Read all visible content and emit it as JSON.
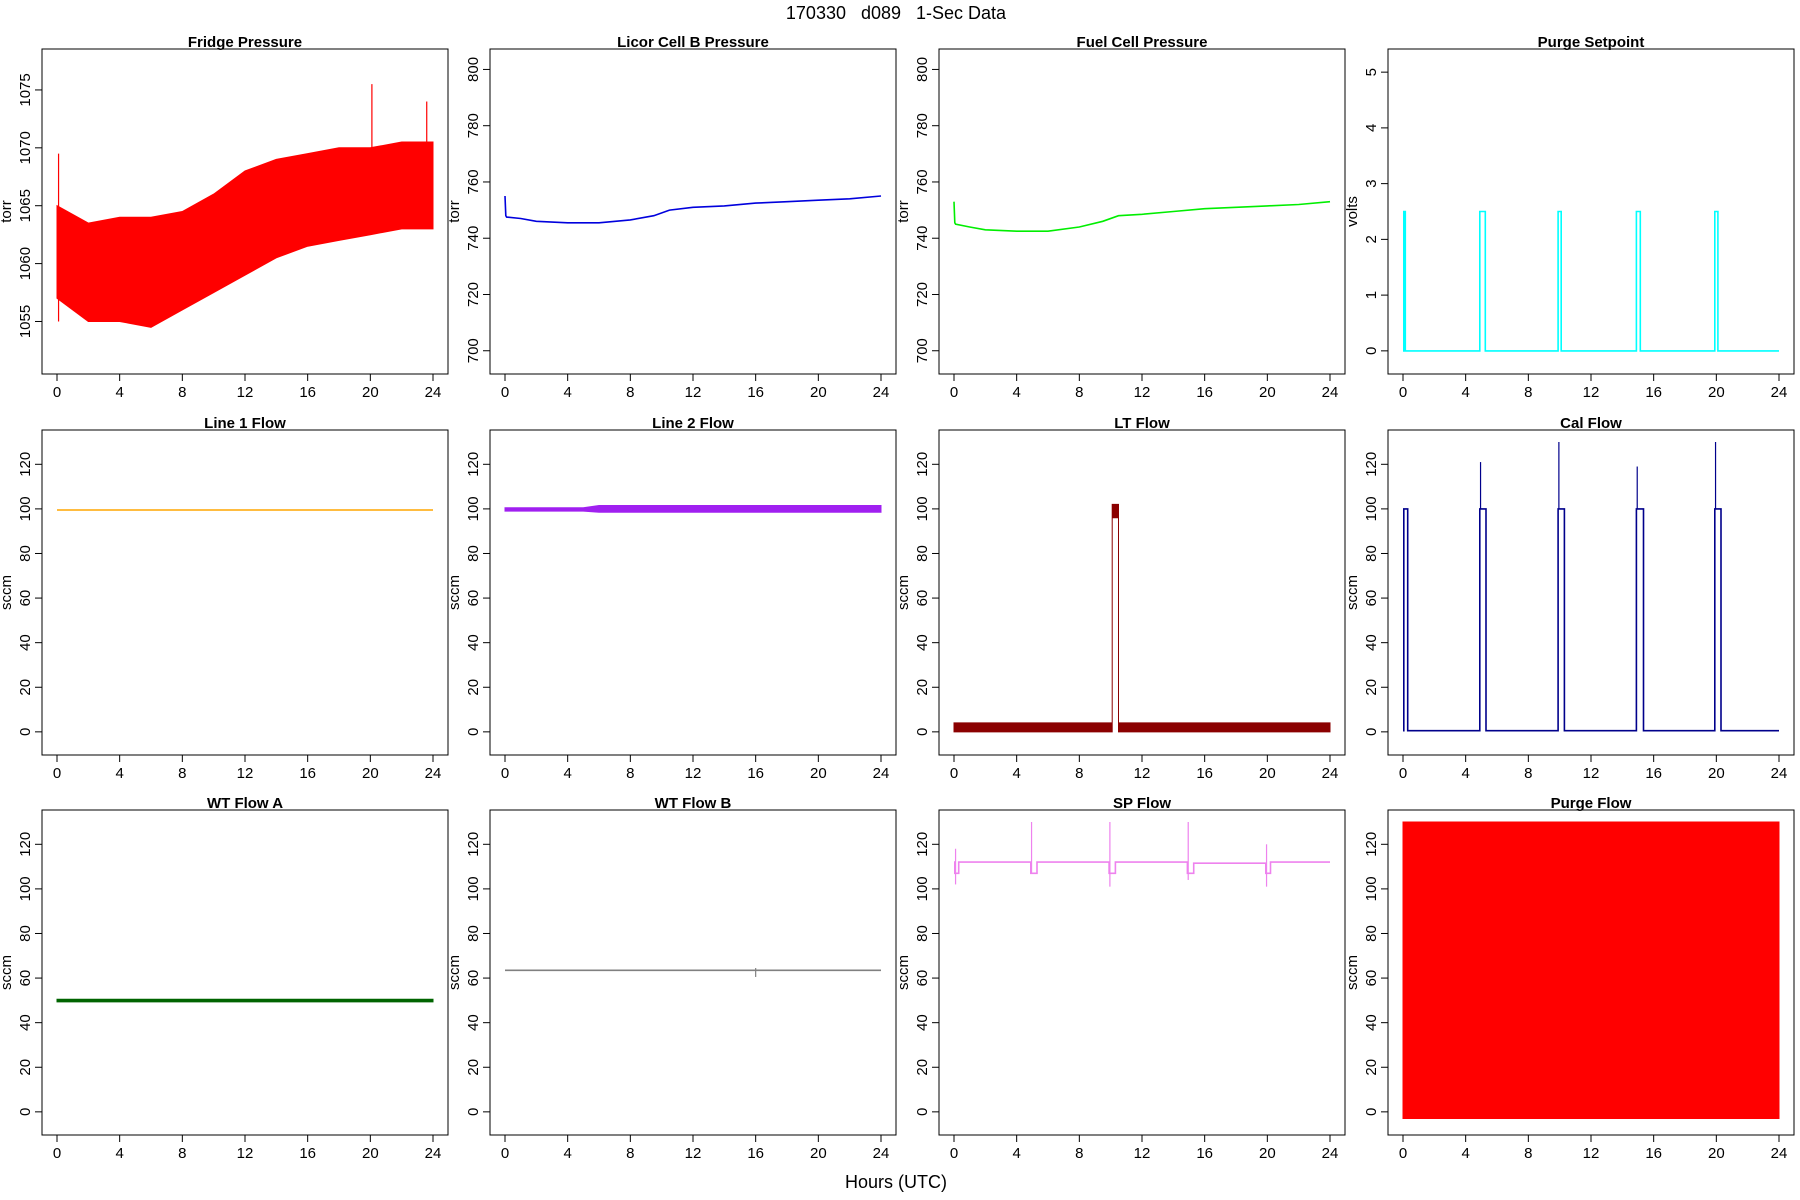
{
  "figure": {
    "title": "170330   d089   1-Sec Data",
    "xlabel": "Hours (UTC)"
  },
  "chart_data": [
    {
      "type": "line",
      "title": "Fridge Pressure",
      "ylabel": "torr",
      "color": "#ff0000",
      "xlim": [
        0,
        24
      ],
      "ylim": [
        1051.5,
        1077.5
      ],
      "xticks": [
        0,
        4,
        8,
        12,
        16,
        20,
        24
      ],
      "yticks": [
        1055,
        1060,
        1065,
        1070,
        1075
      ],
      "style": "band",
      "x": [
        0,
        2,
        4,
        6,
        8,
        10,
        12,
        14,
        16,
        18,
        20,
        22,
        24
      ],
      "y_low": [
        1057,
        1055,
        1055,
        1054.5,
        1056,
        1057.5,
        1059,
        1060.5,
        1061.5,
        1062,
        1062.5,
        1063,
        1063
      ],
      "y_high": [
        1065,
        1063.5,
        1064,
        1064,
        1064.5,
        1066,
        1068,
        1069,
        1069.5,
        1070,
        1070,
        1070.5,
        1070.5
      ],
      "spikes": [
        {
          "x": 0.1,
          "y0": 1055,
          "y1": 1069.5
        },
        {
          "x": 20.1,
          "y0": 1063,
          "y1": 1075.5
        },
        {
          "x": 23.6,
          "y0": 1063,
          "y1": 1074
        }
      ]
    },
    {
      "type": "line",
      "title": "Licor Cell B Pressure",
      "ylabel": "torr",
      "color": "#0000dd",
      "xlim": [
        0,
        24
      ],
      "ylim": [
        696,
        803
      ],
      "xticks": [
        0,
        4,
        8,
        12,
        16,
        20,
        24
      ],
      "yticks": [
        700,
        720,
        740,
        760,
        780,
        800
      ],
      "style": "line",
      "x": [
        0,
        0.05,
        0.1,
        1,
        2,
        4,
        6,
        8,
        9.5,
        10.5,
        12,
        14,
        16,
        18,
        20,
        22,
        24
      ],
      "y": [
        755,
        748,
        747.5,
        747,
        746,
        745.5,
        745.5,
        746.5,
        748,
        750,
        751,
        751.5,
        752.5,
        753,
        753.5,
        754,
        755
      ],
      "spikes": []
    },
    {
      "type": "line",
      "title": "Fuel Cell Pressure",
      "ylabel": "torr",
      "color": "#00ee00",
      "xlim": [
        0,
        24
      ],
      "ylim": [
        696,
        803
      ],
      "xticks": [
        0,
        4,
        8,
        12,
        16,
        20,
        24
      ],
      "yticks": [
        700,
        720,
        740,
        760,
        780,
        800
      ],
      "style": "line",
      "x": [
        0,
        0.05,
        0.1,
        1,
        2,
        4,
        6,
        8,
        9.5,
        10.5,
        12,
        14,
        16,
        18,
        20,
        22,
        24
      ],
      "y": [
        753,
        745.5,
        745,
        744,
        743,
        742.5,
        742.5,
        744,
        746,
        748,
        748.5,
        749.5,
        750.5,
        751,
        751.5,
        752,
        753
      ],
      "spikes": []
    },
    {
      "type": "line",
      "title": "Purge Setpoint",
      "ylabel": "volts",
      "color": "#00ffff",
      "xlim": [
        0,
        24
      ],
      "ylim": [
        -0.2,
        5.2
      ],
      "xticks": [
        0,
        4,
        8,
        12,
        16,
        20,
        24
      ],
      "yticks": [
        0,
        1,
        2,
        3,
        4,
        5
      ],
      "style": "step",
      "x": [
        0,
        0.05,
        0.05,
        0.15,
        0.15,
        4.9,
        4.9,
        5.25,
        5.25,
        9.9,
        9.9,
        10.1,
        10.1,
        14.9,
        14.9,
        15.15,
        15.15,
        19.9,
        19.9,
        20.1,
        20.1,
        24
      ],
      "y": [
        0,
        0,
        2.5,
        2.5,
        0,
        0,
        2.5,
        2.5,
        0,
        0,
        2.5,
        2.5,
        0,
        0,
        2.5,
        2.5,
        0,
        0,
        2.5,
        2.5,
        0,
        0
      ],
      "spikes": []
    },
    {
      "type": "line",
      "title": "Line 1 Flow",
      "ylabel": "sccm",
      "color": "#ffa500",
      "xlim": [
        0,
        24
      ],
      "ylim": [
        -5,
        130
      ],
      "xticks": [
        0,
        4,
        8,
        12,
        16,
        20,
        24
      ],
      "yticks": [
        0,
        20,
        40,
        60,
        80,
        100,
        120
      ],
      "style": "line",
      "x": [
        0,
        24
      ],
      "y": [
        99.5,
        99.5
      ],
      "spikes": []
    },
    {
      "type": "line",
      "title": "Line 2 Flow",
      "ylabel": "sccm",
      "color": "#a020f0",
      "xlim": [
        0,
        24
      ],
      "ylim": [
        -5,
        130
      ],
      "xticks": [
        0,
        4,
        8,
        12,
        16,
        20,
        24
      ],
      "yticks": [
        0,
        20,
        40,
        60,
        80,
        100,
        120
      ],
      "style": "band",
      "x": [
        0,
        5,
        6,
        24
      ],
      "y_low": [
        99,
        99,
        98.5,
        98.5
      ],
      "y_high": [
        100.5,
        100.5,
        101.5,
        101.5
      ],
      "spikes": []
    },
    {
      "type": "line",
      "title": "LT Flow",
      "ylabel": "sccm",
      "color": "#8b0000",
      "xlim": [
        0,
        24
      ],
      "ylim": [
        -5,
        130
      ],
      "xticks": [
        0,
        4,
        8,
        12,
        16,
        20,
        24
      ],
      "yticks": [
        0,
        20,
        40,
        60,
        80,
        100,
        120
      ],
      "style": "band",
      "x": [
        0,
        10.1,
        10.1,
        10.5,
        10.5,
        24
      ],
      "y_low": [
        0,
        0,
        96,
        96,
        0,
        0
      ],
      "y_high": [
        4,
        4,
        102,
        102,
        4,
        4
      ],
      "spikes": []
    },
    {
      "type": "line",
      "title": "Cal Flow",
      "ylabel": "sccm",
      "color": "#00008b",
      "xlim": [
        0,
        24
      ],
      "ylim": [
        -5,
        130
      ],
      "xticks": [
        0,
        4,
        8,
        12,
        16,
        20,
        24
      ],
      "yticks": [
        0,
        20,
        40,
        60,
        80,
        100,
        120
      ],
      "style": "step",
      "x": [
        0,
        0.05,
        0.05,
        0.3,
        0.3,
        4.9,
        4.9,
        5.3,
        5.3,
        9.9,
        9.9,
        10.3,
        10.3,
        14.9,
        14.9,
        15.35,
        15.35,
        19.9,
        19.9,
        20.3,
        20.3,
        24
      ],
      "y": [
        0.5,
        0.5,
        100,
        100,
        0.5,
        0.5,
        100,
        100,
        0.5,
        0.5,
        100,
        100,
        0.5,
        0.5,
        100,
        100,
        0.5,
        0.5,
        100,
        100,
        0.5,
        0.5
      ],
      "spikes": [
        {
          "x": 4.95,
          "y0": 100,
          "y1": 121
        },
        {
          "x": 9.95,
          "y0": 100,
          "y1": 130
        },
        {
          "x": 14.95,
          "y0": 100,
          "y1": 119
        },
        {
          "x": 19.95,
          "y0": 100,
          "y1": 130
        }
      ]
    },
    {
      "type": "line",
      "title": "WT Flow A",
      "ylabel": "sccm",
      "color": "#006400",
      "xlim": [
        0,
        24
      ],
      "ylim": [
        -5,
        130
      ],
      "xticks": [
        0,
        4,
        8,
        12,
        16,
        20,
        24
      ],
      "yticks": [
        0,
        20,
        40,
        60,
        80,
        100,
        120
      ],
      "style": "band",
      "x": [
        0,
        24
      ],
      "y_low": [
        49.3,
        49.3
      ],
      "y_high": [
        50.5,
        50.5
      ],
      "spikes": []
    },
    {
      "type": "line",
      "title": "WT Flow B",
      "ylabel": "sccm",
      "color": "#808080",
      "xlim": [
        0,
        24
      ],
      "ylim": [
        -5,
        130
      ],
      "xticks": [
        0,
        4,
        8,
        12,
        16,
        20,
        24
      ],
      "yticks": [
        0,
        20,
        40,
        60,
        80,
        100,
        120
      ],
      "style": "line",
      "x": [
        0,
        24
      ],
      "y": [
        63.5,
        63.5
      ],
      "spikes": [
        {
          "x": 16.0,
          "y0": 60.5,
          "y1": 64.5
        }
      ]
    },
    {
      "type": "line",
      "title": "SP Flow",
      "ylabel": "sccm",
      "color": "#ee82ee",
      "xlim": [
        0,
        24
      ],
      "ylim": [
        -5,
        130
      ],
      "xticks": [
        0,
        4,
        8,
        12,
        16,
        20,
        24
      ],
      "yticks": [
        0,
        20,
        40,
        60,
        80,
        100,
        120
      ],
      "style": "line",
      "x": [
        0,
        0.05,
        0.05,
        0.3,
        0.3,
        4.9,
        4.9,
        5.3,
        5.3,
        9.9,
        9.9,
        10.3,
        10.3,
        14.9,
        14.9,
        15.3,
        15.3,
        19.9,
        19.9,
        20.2,
        20.2,
        24
      ],
      "y": [
        112,
        112,
        107,
        107,
        112,
        112,
        107,
        107,
        112,
        112,
        107,
        107,
        112,
        112,
        107,
        107,
        111.5,
        111.5,
        107,
        107,
        112,
        112
      ],
      "spikes": [
        {
          "x": 4.95,
          "y0": 107,
          "y1": 130
        },
        {
          "x": 9.95,
          "y0": 101,
          "y1": 130
        },
        {
          "x": 14.95,
          "y0": 104,
          "y1": 130
        },
        {
          "x": 19.95,
          "y0": 101,
          "y1": 120
        },
        {
          "x": 0.1,
          "y0": 102,
          "y1": 118
        }
      ]
    },
    {
      "type": "line",
      "title": "Purge Flow",
      "ylabel": "sccm",
      "color": "#ff0000",
      "xlim": [
        0,
        24
      ],
      "ylim": [
        -5,
        130
      ],
      "xticks": [
        0,
        4,
        8,
        12,
        16,
        20,
        24
      ],
      "yticks": [
        0,
        20,
        40,
        60,
        80,
        100,
        120
      ],
      "style": "band",
      "x": [
        0,
        24
      ],
      "y_low": [
        -3,
        -3
      ],
      "y_high": [
        130,
        130
      ],
      "spikes": []
    }
  ]
}
